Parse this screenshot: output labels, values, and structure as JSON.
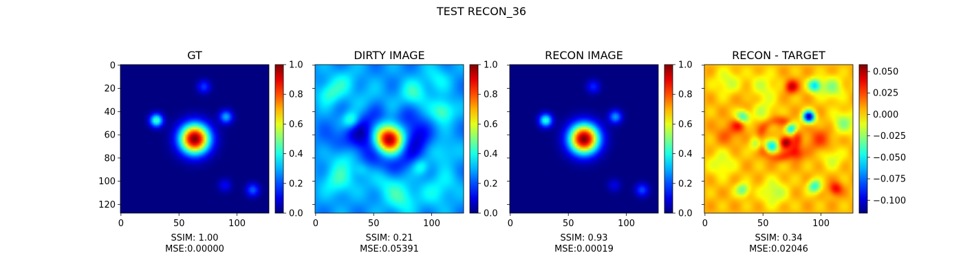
{
  "figure_title": "TEST RECON_36",
  "chart_data": [
    {
      "type": "heatmap",
      "title": "GT",
      "colormap": "jet",
      "image_size": [
        128,
        128
      ],
      "xticks": [
        0,
        50,
        100
      ],
      "yticks": [
        0,
        20,
        40,
        60,
        80,
        100,
        120
      ],
      "colorbar": {
        "min": 0.0,
        "max": 1.0,
        "ticks": [
          "0.0",
          "0.2",
          "0.4",
          "0.6",
          "0.8",
          "1.0"
        ]
      },
      "metrics": {
        "ssim": "SSIM: 1.00",
        "mse": "MSE:0.00000"
      },
      "features": [
        {
          "x": 64,
          "y": 64,
          "value": 1.0
        },
        {
          "x": 31,
          "y": 48,
          "value": 0.45
        },
        {
          "x": 91,
          "y": 45,
          "value": 0.3
        },
        {
          "x": 72,
          "y": 19,
          "value": 0.18
        },
        {
          "x": 114,
          "y": 108,
          "value": 0.22
        },
        {
          "x": 90,
          "y": 104,
          "value": 0.12
        }
      ]
    },
    {
      "type": "heatmap",
      "title": "DIRTY IMAGE",
      "colormap": "jet",
      "image_size": [
        128,
        128
      ],
      "xticks": [
        0,
        50,
        100
      ],
      "yticks": [],
      "colorbar": {
        "min": 0.0,
        "max": 1.0,
        "ticks": [
          "0.0",
          "0.2",
          "0.4",
          "0.6",
          "0.8",
          "1.0"
        ]
      },
      "metrics": {
        "ssim": "SSIM: 0.21",
        "mse": "MSE:0.05391"
      },
      "features": [
        {
          "x": 64,
          "y": 64,
          "value": 1.0
        },
        {
          "x": 31,
          "y": 48,
          "value": 0.5
        },
        {
          "x": 91,
          "y": 88,
          "value": 0.45
        },
        {
          "x": 40,
          "y": 90,
          "value": 0.4
        }
      ]
    },
    {
      "type": "heatmap",
      "title": "RECON IMAGE",
      "colormap": "jet",
      "image_size": [
        128,
        128
      ],
      "xticks": [
        0,
        50,
        100
      ],
      "yticks": [],
      "colorbar": {
        "min": 0.0,
        "max": 1.0,
        "ticks": [
          "0.0",
          "0.2",
          "0.4",
          "0.6",
          "0.8",
          "1.0"
        ]
      },
      "metrics": {
        "ssim": "SSIM: 0.93",
        "mse": "MSE:0.00019"
      },
      "features": [
        {
          "x": 64,
          "y": 64,
          "value": 1.0
        },
        {
          "x": 31,
          "y": 48,
          "value": 0.42
        },
        {
          "x": 91,
          "y": 45,
          "value": 0.28
        },
        {
          "x": 72,
          "y": 19,
          "value": 0.16
        },
        {
          "x": 114,
          "y": 108,
          "value": 0.2
        },
        {
          "x": 90,
          "y": 104,
          "value": 0.1
        }
      ]
    },
    {
      "type": "heatmap",
      "title": "RECON - TARGET",
      "colormap": "jet",
      "image_size": [
        128,
        128
      ],
      "xticks": [
        0,
        50,
        100
      ],
      "yticks": [],
      "colorbar": {
        "min": -0.115,
        "max": 0.058,
        "ticks": [
          "−0.100",
          "−0.075",
          "−0.050",
          "−0.025",
          "0.000",
          "0.025",
          "0.050"
        ],
        "tick_values": [
          -0.1,
          -0.075,
          -0.05,
          -0.025,
          0.0,
          0.025,
          0.05
        ]
      },
      "metrics": {
        "ssim": "SSIM: 0.34",
        "mse": "MSE:0.02046"
      },
      "features": [
        {
          "x": 90,
          "y": 45,
          "value": -0.115
        },
        {
          "x": 75,
          "y": 55,
          "value": -0.07
        },
        {
          "x": 70,
          "y": 67,
          "value": 0.055
        },
        {
          "x": 58,
          "y": 70,
          "value": -0.06
        },
        {
          "x": 95,
          "y": 18,
          "value": -0.06
        },
        {
          "x": 75,
          "y": 19,
          "value": 0.04
        },
        {
          "x": 33,
          "y": 45,
          "value": -0.05
        },
        {
          "x": 33,
          "y": 108,
          "value": -0.04
        },
        {
          "x": 95,
          "y": 105,
          "value": -0.05
        },
        {
          "x": 113,
          "y": 107,
          "value": 0.035
        },
        {
          "x": 30,
          "y": 52,
          "value": 0.03
        },
        {
          "x": 45,
          "y": 68,
          "value": -0.03
        },
        {
          "x": 80,
          "y": 77,
          "value": 0.025
        }
      ]
    }
  ]
}
